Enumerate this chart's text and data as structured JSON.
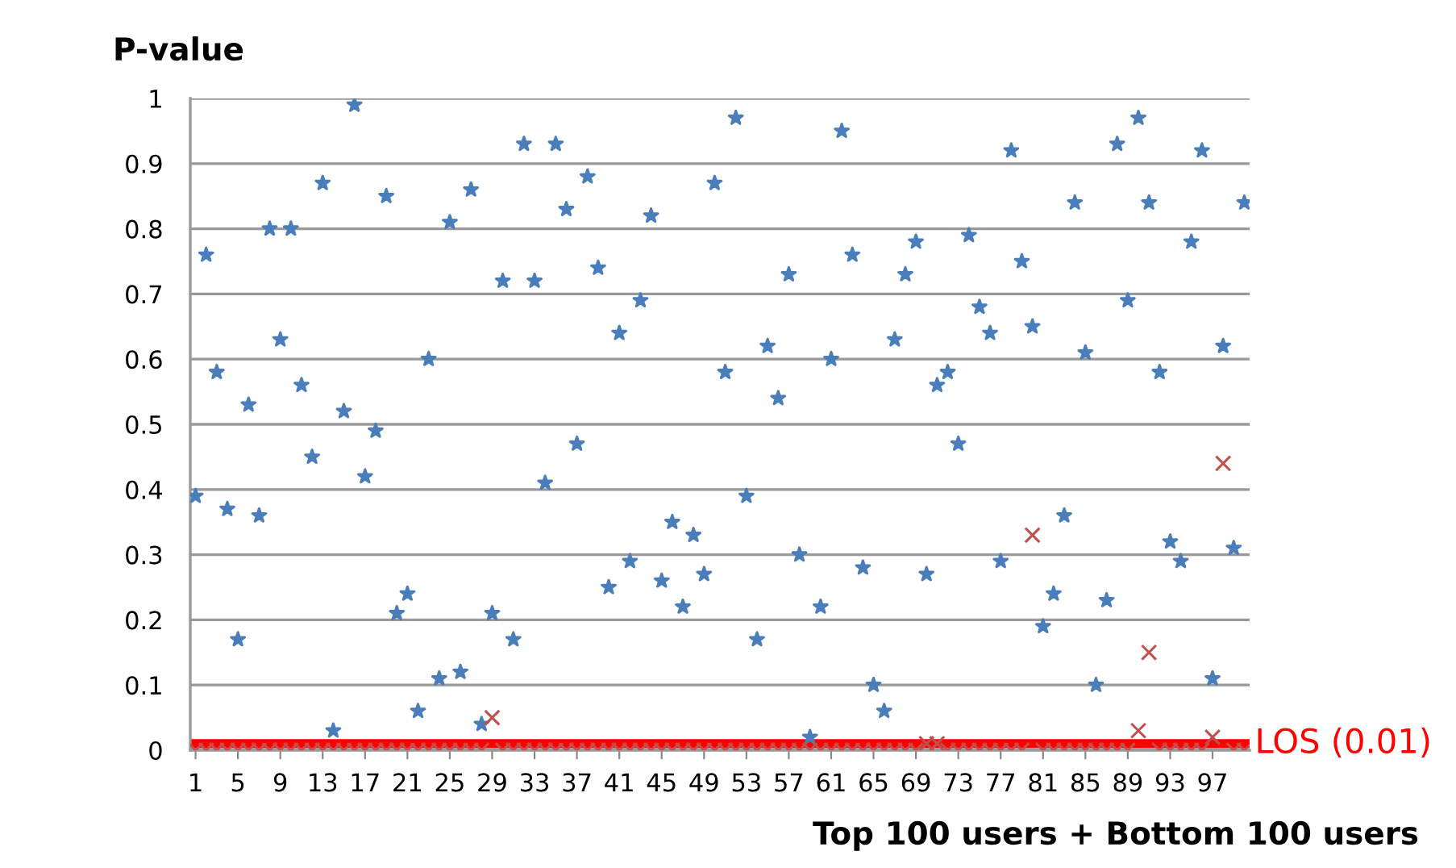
{
  "chart_data": {
    "type": "scatter",
    "ylabel": "P-value",
    "xlabel": "Top 100 users + Bottom 100 users",
    "categories": [
      "1",
      null,
      null,
      null,
      "5",
      null,
      null,
      null,
      "9",
      null,
      null,
      null,
      "13",
      null,
      null,
      null,
      "17",
      null,
      null,
      null,
      "21",
      null,
      null,
      null,
      "25",
      null,
      null,
      null,
      "29",
      null,
      null,
      null,
      "33",
      null,
      null,
      null,
      "37",
      null,
      null,
      null,
      "41",
      null,
      null,
      null,
      "45",
      null,
      null,
      null,
      "49",
      null,
      null,
      null,
      "53",
      null,
      null,
      null,
      "57",
      null,
      null,
      null,
      "61",
      null,
      null,
      null,
      "65",
      null,
      null,
      null,
      "69",
      null,
      null,
      null,
      "73",
      null,
      null,
      null,
      "77",
      null,
      null,
      null,
      "81",
      null,
      null,
      null,
      "85",
      null,
      null,
      null,
      "89",
      null,
      null,
      null,
      "93",
      null,
      null,
      null,
      "97",
      null,
      null,
      null
    ],
    "series": [
      {
        "color": "#4a7ebb",
        "marker": "star",
        "values": [
          0.39,
          0.76,
          0.58,
          0.37,
          0.17,
          0.53,
          0.36,
          0.8,
          0.63,
          0.8,
          0.56,
          0.45,
          0.87,
          0.03,
          0.52,
          0.99,
          0.42,
          0.49,
          0.85,
          0.21,
          0.24,
          0.06,
          0.6,
          0.11,
          0.81,
          0.12,
          0.86,
          0.04,
          0.21,
          0.72,
          0.17,
          0.93,
          0.72,
          0.41,
          0.93,
          0.83,
          0.47,
          0.88,
          0.74,
          0.25,
          0.64,
          0.29,
          0.69,
          0.82,
          0.26,
          0.35,
          0.22,
          0.33,
          0.27,
          0.87,
          0.58,
          0.97,
          0.39,
          0.17,
          0.62,
          0.54,
          0.73,
          0.3,
          0.02,
          0.22,
          0.6,
          0.95,
          0.76,
          0.28,
          0.1,
          0.06,
          0.63,
          0.73,
          0.78,
          0.27,
          0.56,
          0.58,
          0.47,
          0.79,
          0.68,
          0.64,
          0.29,
          0.92,
          0.75,
          0.65,
          0.19,
          0.24,
          0.36,
          0.84,
          0.61,
          0.1,
          0.23,
          0.93,
          0.69,
          0.97,
          0.84,
          0.58,
          0.32,
          0.29,
          0.78,
          0.92,
          0.11,
          0.62,
          0.31,
          0.84
        ]
      },
      {
        "color": "#c0504d",
        "marker": "cross",
        "values": [
          0,
          0,
          0,
          0,
          0,
          0,
          0,
          0,
          0,
          0,
          0,
          0,
          0,
          0,
          0,
          0,
          0,
          0,
          0,
          0,
          0,
          0,
          0,
          0,
          0,
          0,
          0,
          0,
          0.05,
          0,
          0,
          0,
          0,
          0,
          0,
          0,
          0,
          0,
          0,
          0,
          0,
          0,
          0,
          0,
          0,
          0,
          0,
          0,
          0,
          0,
          0,
          0,
          0,
          0,
          0,
          0,
          0,
          0,
          0,
          0,
          0,
          0,
          0,
          0,
          0,
          0,
          0,
          0,
          0,
          0.01,
          0.01,
          0,
          0,
          0,
          0,
          0,
          0,
          0,
          0,
          0.33,
          0,
          0,
          0,
          0,
          0,
          0,
          0,
          0,
          0,
          0.03,
          0.15,
          0,
          0,
          0,
          0,
          0,
          0.02,
          0.44,
          0,
          0
        ]
      }
    ],
    "ylim": [
      0,
      1
    ],
    "yticks": [
      0,
      0.1,
      0.2,
      0.3,
      0.4,
      0.5,
      0.6,
      0.7,
      0.8,
      0.9,
      1
    ],
    "grid": "y",
    "ref_lines": [
      {
        "axis": "y",
        "value": 0.01,
        "label": "LOS (0.01)",
        "color": "#ff0000"
      }
    ]
  }
}
